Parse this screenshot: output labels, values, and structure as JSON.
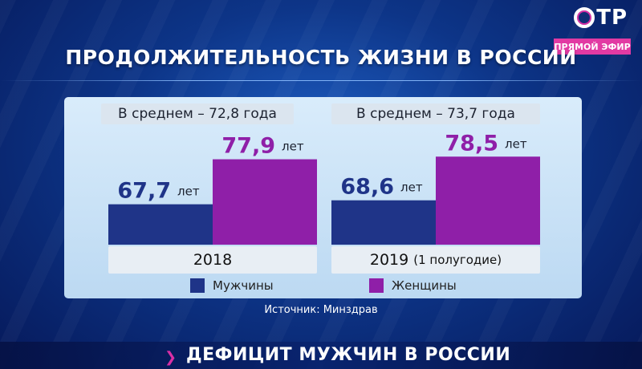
{
  "header": {
    "logo_text": "ТР",
    "live_badge": "ПРЯМОЙ ЭФИР",
    "title": "ПРОДОЛЖИТЕЛЬНОСТЬ ЖИЗНИ В РОССИИ"
  },
  "colors": {
    "men": "#1f3488",
    "women": "#8f1fa8",
    "men_value_text": "#1f3488",
    "women_value_text": "#8f1fa8",
    "accent": "#e23aa3"
  },
  "chart_data": {
    "type": "bar",
    "unit": "лет",
    "ylim": [
      0,
      90
    ],
    "legend_position": "bottom",
    "series": [
      {
        "name": "Мужчины",
        "values": [
          67.7,
          68.6
        ]
      },
      {
        "name": "Женщины",
        "values": [
          77.9,
          78.5
        ]
      }
    ],
    "groups": [
      {
        "category": "2018",
        "category_note": "",
        "average_label": "В среднем – 72,8 года",
        "values_text": [
          "67,7",
          "77,9"
        ]
      },
      {
        "category": "2019",
        "category_note": "(1 полугодие)",
        "average_label": "В среднем – 73,7 года",
        "values_text": [
          "68,6",
          "78,5"
        ]
      }
    ]
  },
  "source": "Источник: Минздрав",
  "ticker": {
    "text": "ДЕФИЦИТ МУЖЧИН В РОССИИ"
  }
}
